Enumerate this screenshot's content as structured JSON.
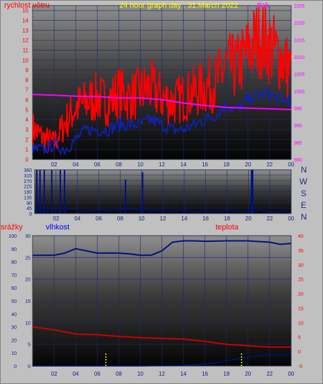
{
  "header": {
    "wind_label": "rychlost větru",
    "title": "24 hour graph day : 31.March 2022",
    "pressure_label": "tlak"
  },
  "bottom_header": {
    "rain_label": "srážky",
    "humidity_label": "vlhkost",
    "temp_label": "teplota"
  },
  "compass": [
    "N",
    "W",
    "S",
    "E",
    "N"
  ],
  "colors": {
    "wind": "#ff0000",
    "wind_avg": "#1020c0",
    "pressure": "#ff00ff",
    "direction": "#001080",
    "humidity": "#001080",
    "temperature": "#cc0000",
    "rain_total": "#001080",
    "rain_rate": "#ffff00",
    "title": "#ffff00"
  },
  "chart_data": [
    {
      "type": "line",
      "name": "wind-pressure",
      "x_ticks": [
        "02",
        "04",
        "06",
        "08",
        "10",
        "12",
        "14",
        "16",
        "18",
        "20",
        "22",
        "00"
      ],
      "y_left_ticks": [
        0,
        1,
        2,
        3,
        4,
        5,
        6,
        7,
        8,
        9,
        10,
        11,
        12,
        13,
        14,
        15
      ],
      "y_left_range": [
        0,
        15.5
      ],
      "y_right_ticks": [
        980,
        985,
        990,
        995,
        1000,
        1005,
        1010,
        1015,
        1020,
        1025
      ],
      "y_right_range": [
        980,
        1025
      ],
      "series": [
        {
          "id": "gust",
          "axis": "left",
          "x": [
            0,
            1,
            2,
            3,
            4,
            5,
            6,
            7,
            8,
            9,
            10,
            11,
            12,
            13,
            14,
            15,
            16,
            17,
            18,
            19,
            20,
            21,
            22,
            23,
            24
          ],
          "values": [
            3,
            2,
            1.5,
            3.5,
            5,
            5.5,
            6,
            5.5,
            6.5,
            6,
            6.5,
            7,
            6,
            5.5,
            6,
            6.5,
            7,
            7.5,
            9,
            9,
            10.5,
            12,
            11,
            10,
            8.5
          ]
        },
        {
          "id": "average",
          "axis": "left",
          "x": [
            0,
            1,
            2,
            3,
            4,
            5,
            6,
            7,
            8,
            9,
            10,
            11,
            12,
            13,
            14,
            15,
            16,
            17,
            18,
            19,
            20,
            21,
            22,
            23,
            24
          ],
          "values": [
            1,
            1,
            1.5,
            1,
            2,
            3,
            3,
            3,
            3.5,
            3.5,
            3.5,
            4,
            3.5,
            3,
            3,
            3.5,
            4,
            4.5,
            5.5,
            5,
            6,
            6.5,
            6.5,
            6,
            6
          ]
        },
        {
          "id": "pressure",
          "axis": "right",
          "x": [
            0,
            2,
            4,
            6,
            8,
            10,
            12,
            14,
            16,
            18,
            20,
            22,
            24
          ],
          "values": [
            999,
            998.8,
            998.5,
            998.4,
            998,
            998,
            997.5,
            996.5,
            995.8,
            995.2,
            995,
            994.8,
            994.6
          ]
        }
      ]
    },
    {
      "type": "line",
      "name": "wind-direction",
      "x_ticks": [
        "02",
        "04",
        "06",
        "08",
        "10",
        "12",
        "14",
        "16",
        "18",
        "20",
        "22",
        "00"
      ],
      "y_ticks": [
        0,
        45,
        90,
        135,
        180,
        225,
        270,
        315,
        360
      ],
      "y_range": [
        0,
        360
      ],
      "spikes": [
        {
          "x": 0.2,
          "value": 360
        },
        {
          "x": 0.5,
          "value": 360
        },
        {
          "x": 0.9,
          "value": 360
        },
        {
          "x": 1.6,
          "value": 360
        },
        {
          "x": 2.4,
          "value": 360
        },
        {
          "x": 2.8,
          "value": 360
        },
        {
          "x": 8.5,
          "value": 280
        },
        {
          "x": 10.1,
          "value": 340
        },
        {
          "x": 20.3,
          "value": 360
        },
        {
          "x": 20.4,
          "value": 360
        }
      ],
      "baseline": {
        "x": [
          0,
          2,
          3,
          4,
          6,
          8,
          9,
          10,
          11,
          12,
          14,
          16,
          18,
          20,
          22,
          24
        ],
        "values": [
          20,
          25,
          35,
          28,
          25,
          30,
          35,
          30,
          28,
          25,
          22,
          20,
          20,
          22,
          20,
          20
        ]
      }
    },
    {
      "type": "line",
      "name": "humidity-temperature-rain",
      "x_ticks": [
        "02",
        "04",
        "06",
        "08",
        "10",
        "12",
        "14",
        "16",
        "18",
        "20",
        "22",
        "00"
      ],
      "y_rain_ticks": [
        0,
        10,
        20,
        30,
        40,
        50,
        60,
        70,
        80,
        90,
        100
      ],
      "y_rain_range": [
        0,
        100
      ],
      "y_humidity_ticks": [
        0,
        5,
        10,
        15,
        20,
        25,
        30
      ],
      "y_humidity_range": [
        0,
        30
      ],
      "y_temp_ticks": [
        -5,
        0,
        5,
        10,
        15,
        20,
        25,
        30,
        35,
        40
      ],
      "y_temp_range": [
        -5,
        40
      ],
      "series": [
        {
          "id": "humidity",
          "axis": "humidity",
          "x": [
            0,
            1,
            2,
            3,
            4,
            5,
            6,
            7,
            8,
            9,
            10,
            11,
            12,
            13,
            14,
            15,
            16,
            18,
            20,
            22,
            23,
            24
          ],
          "values": [
            25.5,
            25.5,
            25.5,
            26,
            27,
            26.5,
            26,
            26,
            26,
            25.8,
            25.5,
            25.5,
            26.5,
            28.5,
            28.8,
            28.8,
            28.7,
            28.8,
            28.8,
            28.5,
            28,
            28.2
          ]
        },
        {
          "id": "temperature",
          "axis": "temp",
          "x": [
            0,
            2,
            4,
            6,
            8,
            10,
            12,
            14,
            16,
            18,
            20,
            22,
            24
          ],
          "values": [
            8.5,
            7.5,
            6,
            5.8,
            5.2,
            4.8,
            4.5,
            4.3,
            3.5,
            2.5,
            2,
            1.5,
            1.5
          ]
        },
        {
          "id": "rain_total",
          "axis": "rain",
          "x": [
            0,
            10,
            12,
            14,
            16,
            17,
            18,
            19,
            20,
            21,
            22,
            23,
            24
          ],
          "values": [
            0,
            0,
            0.2,
            0.5,
            1.5,
            2.5,
            4,
            5.5,
            7,
            8,
            8.3,
            8.5,
            8.5
          ]
        }
      ],
      "rain_rate_bars": [
        {
          "x": 6.8,
          "value": 3
        },
        {
          "x": 19.4,
          "value": 3
        }
      ]
    }
  ]
}
